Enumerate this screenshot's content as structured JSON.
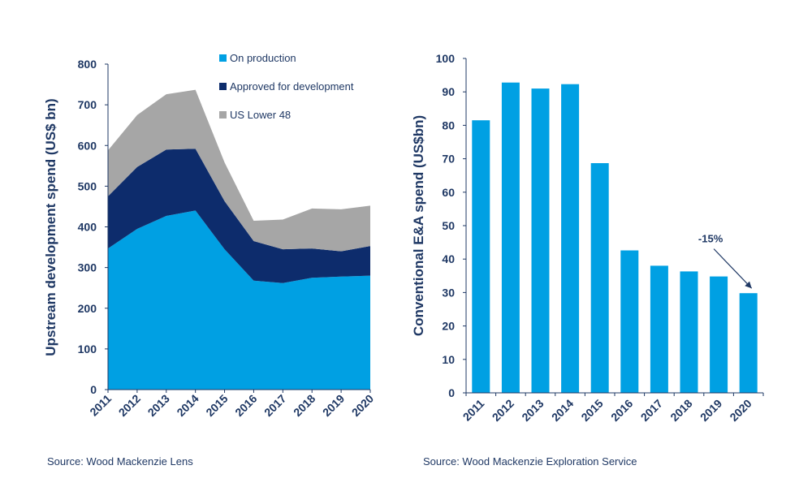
{
  "chart_data": [
    {
      "type": "area",
      "stacked": true,
      "x": [
        "2011",
        "2012",
        "2013",
        "2014",
        "2015",
        "2016",
        "2017",
        "2018",
        "2019",
        "2020"
      ],
      "series": [
        {
          "name": "On production",
          "color": "#00a0e3",
          "values": [
            347,
            395,
            427,
            440,
            345,
            268,
            262,
            275,
            278,
            280
          ]
        },
        {
          "name": "Approved for development",
          "color": "#0d2c6c",
          "values": [
            128,
            152,
            163,
            152,
            118,
            97,
            83,
            72,
            62,
            73
          ]
        },
        {
          "name": "US Lower 48",
          "color": "#a6a6a6",
          "values": [
            113,
            128,
            136,
            145,
            95,
            50,
            73,
            98,
            103,
            99
          ]
        }
      ],
      "ylabel": "Upstream development spend (US$ bn)",
      "ylim": [
        0,
        800
      ],
      "yticks": [
        "0",
        "100",
        "200",
        "300",
        "400",
        "500",
        "600",
        "700",
        "800"
      ],
      "legend": "top-center",
      "source": "Source: Wood Mackenzie Lens"
    },
    {
      "type": "bar",
      "categories": [
        "2011",
        "2012",
        "2013",
        "2014",
        "2015",
        "2016",
        "2017",
        "2018",
        "2019",
        "2020"
      ],
      "values": [
        81.5,
        92.8,
        91.0,
        92.3,
        68.7,
        42.6,
        38.0,
        36.3,
        34.8,
        29.8
      ],
      "color": "#00a0e3",
      "ylabel": "Conventional E&A spend (US$bn)",
      "ylim": [
        0,
        100
      ],
      "yticks": [
        "0",
        "10",
        "20",
        "30",
        "40",
        "50",
        "60",
        "70",
        "80",
        "90",
        "100"
      ],
      "annotation": {
        "text": "-15%",
        "from_category": "2019",
        "to_category": "2020"
      },
      "source": "Source: Wood Mackenzie Exploration Service"
    }
  ]
}
